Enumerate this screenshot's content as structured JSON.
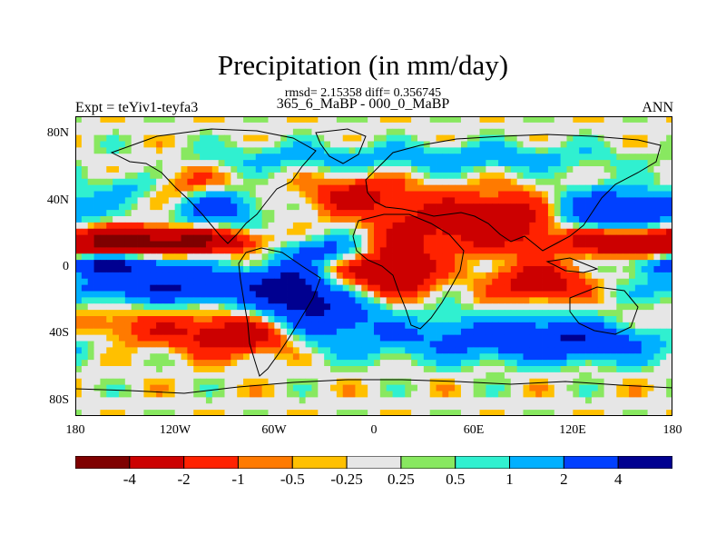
{
  "chart_data": {
    "type": "heatmap",
    "title": "Precipitation (in mm/day)",
    "subtitle_stats": "rmsd= 2.15358 diff= 0.356745",
    "subtitle_cases": "365_6_MaBP - 000_0_MaBP",
    "left_label": "Expt = teYiv1-teyfa3",
    "right_label": "ANN",
    "x_ticks": [
      "180",
      "120W",
      "60W",
      "0",
      "60E",
      "120E",
      "180"
    ],
    "y_ticks": [
      "80N",
      "40N",
      "0",
      "40S",
      "80S"
    ],
    "xlim": [
      -180,
      180
    ],
    "ylim": [
      -90,
      90
    ],
    "levels": [
      -4,
      -2,
      -1,
      -0.5,
      -0.25,
      0.25,
      0.5,
      1,
      2,
      4
    ],
    "level_labels": [
      "-4",
      "-2",
      "-1",
      "-0.5",
      "-0.25",
      "0.25",
      "0.5",
      "1",
      "2",
      "4"
    ],
    "colors": [
      "#7f0000",
      "#cc0000",
      "#ff2200",
      "#ff7a00",
      "#ffc000",
      "#e6e6e6",
      "#88e860",
      "#30f0d0",
      "#00b0ff",
      "#0040ff",
      "#000090"
    ],
    "anomalies": [
      {
        "lon": -150,
        "lat": 15,
        "amp": -4,
        "slon": 30,
        "slat": 6
      },
      {
        "lon": -100,
        "lat": 15,
        "amp": -3,
        "slon": 25,
        "slat": 5
      },
      {
        "lon": 150,
        "lat": 15,
        "amp": -3.5,
        "slon": 25,
        "slat": 6
      },
      {
        "lon": -120,
        "lat": -12,
        "amp": 4,
        "slon": 45,
        "slat": 7
      },
      {
        "lon": -160,
        "lat": 1,
        "amp": 4,
        "slon": 28,
        "slat": 4
      },
      {
        "lon": -95,
        "lat": 35,
        "amp": 3,
        "slon": 18,
        "slat": 8
      },
      {
        "lon": 145,
        "lat": 33,
        "amp": 4,
        "slon": 30,
        "slat": 9
      },
      {
        "lon": -30,
        "lat": -25,
        "amp": 4,
        "slon": 25,
        "slat": 14
      },
      {
        "lon": -50,
        "lat": -12,
        "amp": 3,
        "slon": 15,
        "slat": 10
      },
      {
        "lon": 80,
        "lat": -42,
        "amp": 2,
        "slon": 40,
        "slat": 10
      },
      {
        "lon": -145,
        "lat": 48,
        "amp": 2,
        "slon": 15,
        "slat": 6
      },
      {
        "lon": -30,
        "lat": 10,
        "amp": 2.5,
        "slon": 18,
        "slat": 6
      },
      {
        "lon": 30,
        "lat": 10,
        "amp": 1.5,
        "slon": 15,
        "slat": 8
      },
      {
        "lon": 20,
        "lat": 3,
        "amp": -4,
        "slon": 14,
        "slat": 12
      },
      {
        "lon": 55,
        "lat": 25,
        "amp": -3,
        "slon": 30,
        "slat": 12
      },
      {
        "lon": 90,
        "lat": 30,
        "amp": -2,
        "slon": 20,
        "slat": 10
      },
      {
        "lon": -10,
        "lat": 42,
        "amp": -2.5,
        "slon": 20,
        "slat": 8
      },
      {
        "lon": 100,
        "lat": -10,
        "amp": -3,
        "slon": 20,
        "slat": 8
      },
      {
        "lon": -10,
        "lat": -8,
        "amp": -3,
        "slon": 20,
        "slat": 10
      },
      {
        "lon": -150,
        "lat": -38,
        "amp": -1.5,
        "slon": 40,
        "slat": 8
      },
      {
        "lon": -80,
        "lat": -42,
        "amp": -3,
        "slon": 25,
        "slat": 8
      },
      {
        "lon": 130,
        "lat": -45,
        "amp": 3,
        "slon": 40,
        "slat": 8
      },
      {
        "lon": 20,
        "lat": -45,
        "amp": 1,
        "slon": 30,
        "slat": 8
      },
      {
        "lon": -120,
        "lat": 48,
        "amp": -1.5,
        "slon": 25,
        "slat": 8
      },
      {
        "lon": 60,
        "lat": 65,
        "amp": 1.5,
        "slon": 60,
        "slat": 6
      },
      {
        "lon": -60,
        "lat": 65,
        "amp": 1,
        "slon": 40,
        "slat": 6
      }
    ]
  }
}
